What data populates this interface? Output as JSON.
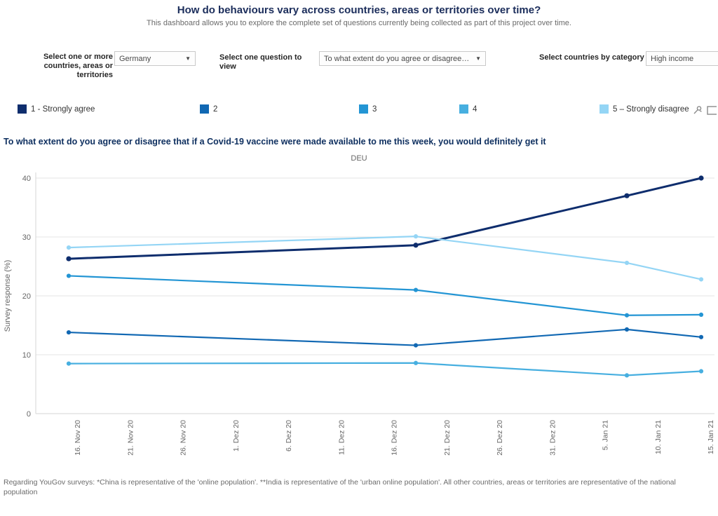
{
  "header": {
    "title": "How do behaviours vary across countries, areas or territories over time?",
    "subtitle": "This dashboard allows you to explore the complete set of questions currently being collected as part of this project over time."
  },
  "filters": {
    "countries": {
      "label_lines": [
        "Select one or more",
        "countries, areas or",
        "territories"
      ],
      "value": "Germany"
    },
    "question": {
      "label": "Select one question to view",
      "value": "To what extent do you agree or disagree t..."
    },
    "category": {
      "label": "Select countries by category",
      "value": "High income"
    }
  },
  "legend": {
    "items": [
      {
        "label": "1 - Strongly agree",
        "color": "#0e2d6d"
      },
      {
        "label": "2",
        "color": "#1168b3"
      },
      {
        "label": "3",
        "color": "#2395d4"
      },
      {
        "label": "4",
        "color": "#47afe0"
      },
      {
        "label": "5 – Strongly disagree",
        "color": "#94d5f5"
      }
    ],
    "icons": [
      "pin-icon",
      "expand-icon"
    ]
  },
  "question_title": "To what extent do you agree or disagree that if a Covid-19 vaccine were made available to me this week, you would definitely get it",
  "chart_data": {
    "type": "line",
    "title": "DEU",
    "xlabel": "",
    "ylabel": "Survey response (%)",
    "ylim": [
      0,
      40
    ],
    "yticks": [
      0,
      10,
      20,
      30,
      40
    ],
    "x_tick_labels": [
      "16. Nov 20",
      "21. Nov 20",
      "26. Nov 20",
      "1. Dez 20",
      "6. Dez 20",
      "11. Dez 20",
      "16. Dez 20",
      "21. Dez 20",
      "26. Dez 20",
      "31. Dez 20",
      "5. Jan 21",
      "10. Jan 21",
      "15. Jan 21"
    ],
    "survey_wave_dates": [
      "16. Nov 20",
      "18. Dez 20",
      "7. Jan 21",
      "14. Jan 21"
    ],
    "grid": true,
    "legend_position": "top",
    "series": [
      {
        "name": "1 - Strongly agree",
        "color": "#0e2d6d",
        "values": [
          26.3,
          28.6,
          37.0,
          40.0
        ]
      },
      {
        "name": "2",
        "color": "#1168b3",
        "values": [
          13.8,
          11.6,
          14.3,
          13.0
        ]
      },
      {
        "name": "3",
        "color": "#2395d4",
        "values": [
          23.4,
          21.0,
          16.7,
          16.8
        ]
      },
      {
        "name": "4",
        "color": "#47afe0",
        "values": [
          8.5,
          8.6,
          6.5,
          7.2
        ]
      },
      {
        "name": "5 – Strongly disagree",
        "color": "#94d5f5",
        "values": [
          28.2,
          30.1,
          25.6,
          22.8
        ]
      }
    ]
  },
  "footnote": "Regarding YouGov surveys: *China is representative of the 'online population'. **India is representative of the 'urban online population'. All other countries, areas or territories are representative of the national population"
}
